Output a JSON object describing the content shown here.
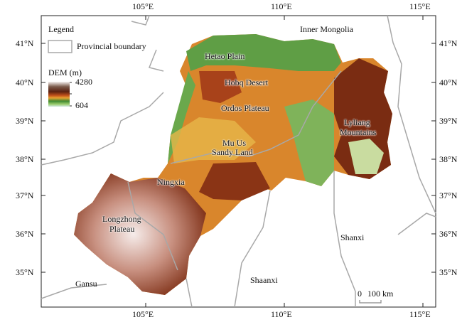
{
  "map": {
    "longitude_ticks": [
      "105°E",
      "110°E",
      "115°E"
    ],
    "latitude_ticks": [
      "41°N",
      "40°N",
      "39°N",
      "38°N",
      "37°N",
      "36°N",
      "35°N"
    ],
    "legend": {
      "title": "Legend",
      "boundary_label": "Provincial boundary",
      "dem_title": "DEM (m)",
      "dem_max": "4280",
      "dem_min": "604",
      "colors": [
        "#ffffff",
        "#5a2a14",
        "#8b3a1a",
        "#e08a2a",
        "#e8c040",
        "#3f8a32",
        "#8cc36a",
        "#c8e8c8"
      ]
    },
    "places": {
      "inner_mongolia": "Inner Mongolia",
      "hetao_plain": "Hetao Plain",
      "hobq_desert": "Hobq Desert",
      "ordos_plateau": "Ordos Plateau",
      "mu_us_line1": "Mu Us",
      "mu_us_line2": "Sandy Land",
      "ningxia": "Ningxia",
      "longzhong_line1": "Longzhong",
      "longzhong_line2": "Plateau",
      "lyliang_line1": "Lyliang",
      "lyliang_line2": "Mountains",
      "shanxi": "Shanxi",
      "shaanxi": "Shaanxi",
      "gansu": "Gansu"
    },
    "scale_bar": {
      "zero": "0",
      "distance": "100 km"
    },
    "boundary_color": "#a8a8a8"
  }
}
